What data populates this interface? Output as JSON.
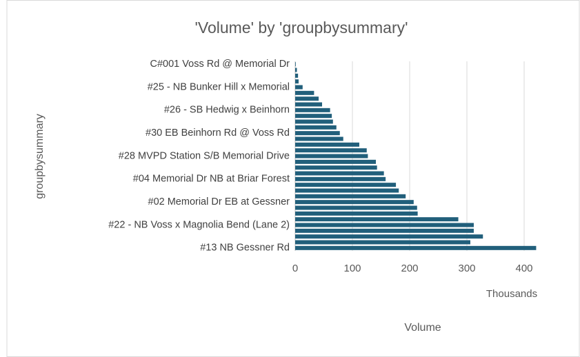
{
  "chart_data": {
    "type": "bar",
    "orientation": "horizontal",
    "title": "'Volume' by 'groupbysummary'",
    "y_label": "groupbysummary",
    "x_label": "Volume",
    "x_unit_label": "Thousands",
    "categories": [
      "C#001 Voss Rd @ Memorial Dr",
      null,
      null,
      null,
      "#25 - NB Bunker Hill x Memorial",
      null,
      null,
      null,
      "#26 - SB Hedwig x Beinhorn",
      null,
      null,
      null,
      "#30 EB Beinhorn Rd @ Voss Rd",
      null,
      null,
      null,
      "#28 MVPD Station S/B Memorial Drive",
      null,
      null,
      null,
      "#04 Memorial Dr NB at Briar Forest",
      null,
      null,
      null,
      "#02 Memorial Dr EB at Gessner",
      null,
      null,
      null,
      "#22 - NB Voss x Magnolia Bend (Lane 2)",
      null,
      null,
      null,
      "#13 NB Gessner Rd"
    ],
    "values": [
      1,
      3,
      5,
      6,
      13,
      33,
      41,
      47,
      61,
      64,
      66,
      72,
      78,
      84,
      112,
      125,
      127,
      141,
      143,
      155,
      158,
      176,
      181,
      193,
      207,
      213,
      214,
      285,
      312,
      312,
      328,
      306,
      421
    ],
    "color": "#215f7b",
    "xlim": [
      0,
      400
    ],
    "xticks": [
      0,
      100,
      200,
      300,
      400
    ],
    "grid": true
  }
}
